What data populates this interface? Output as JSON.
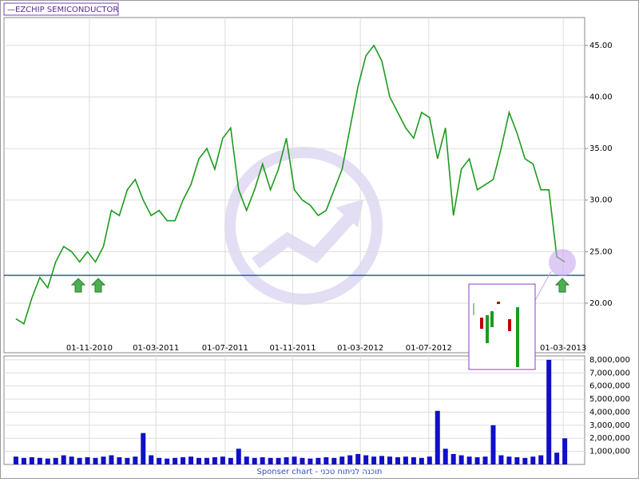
{
  "chart_data": [
    {
      "type": "line",
      "legend_label": "EZCHIP SEMICONDUCTOR",
      "series": [
        {
          "name": "EZCHIP SEMICONDUCTOR",
          "color": "#1e9a1e",
          "values": [
            18.5,
            18,
            20.5,
            22.5,
            21.5,
            24,
            25.5,
            25,
            24,
            25,
            24,
            25.5,
            29,
            28.5,
            31,
            32,
            30,
            28.5,
            29,
            28,
            28,
            30,
            31.5,
            34,
            35,
            33,
            36,
            37,
            31,
            29,
            31,
            33.5,
            31,
            33,
            36,
            31,
            30,
            29.5,
            28.5,
            29,
            31,
            33,
            37,
            41,
            44,
            45,
            43.5,
            40,
            38.5,
            37,
            36,
            38.5,
            38,
            34,
            37,
            28.5,
            33,
            34,
            31,
            31.5,
            32,
            35,
            38.5,
            36.5,
            34,
            33.5,
            31,
            31,
            24.5,
            24
          ]
        }
      ],
      "xlim": [
        -1.5,
        71.5
      ],
      "xticks": [
        {
          "value": 9.24,
          "label": "01-11-2010"
        },
        {
          "value": 17.6,
          "label": "01-03-2011"
        },
        {
          "value": 26.3,
          "label": "01-07-2011"
        },
        {
          "value": 34.8,
          "label": "01-11-2011"
        },
        {
          "value": 43.3,
          "label": "01-03-2012"
        },
        {
          "value": 51.9,
          "label": "01-07-2012"
        },
        {
          "value": 68.8,
          "label": "01-03-2013"
        }
      ],
      "ylim": [
        15.2,
        47.7
      ],
      "yticks": [
        {
          "value": 20,
          "label": "20.00"
        },
        {
          "value": 25,
          "label": "25.00"
        },
        {
          "value": 30,
          "label": "30.00"
        },
        {
          "value": 35,
          "label": "35.00"
        },
        {
          "value": 40,
          "label": "40.00"
        },
        {
          "value": 45,
          "label": "45.00"
        }
      ],
      "reference_line": {
        "value": 22.7,
        "color": "#1f4e9a"
      },
      "grid": true
    },
    {
      "type": "bar",
      "color": "#1010c8",
      "values": [
        600000,
        500000,
        550000,
        500000,
        450000,
        500000,
        700000,
        600000,
        500000,
        550000,
        500000,
        600000,
        700000,
        550000,
        500000,
        600000,
        2400000,
        700000,
        500000,
        450000,
        500000,
        550000,
        600000,
        500000,
        500000,
        550000,
        600000,
        500000,
        1200000,
        600000,
        500000,
        550000,
        500000,
        500000,
        550000,
        600000,
        500000,
        450000,
        500000,
        550000,
        500000,
        600000,
        700000,
        800000,
        700000,
        600000,
        650000,
        600000,
        550000,
        600000,
        550000,
        500000,
        600000,
        4100000,
        1200000,
        800000,
        700000,
        600000,
        550000,
        600000,
        3000000,
        700000,
        600000,
        550000,
        500000,
        600000,
        700000,
        8000000,
        900000,
        2000000
      ],
      "ylim": [
        0,
        8300000
      ],
      "yticks": [
        {
          "value": 1000000,
          "label": "1,000,000"
        },
        {
          "value": 2000000,
          "label": "2,000,000"
        },
        {
          "value": 3000000,
          "label": "3,000,000"
        },
        {
          "value": 4000000,
          "label": "4,000,000"
        },
        {
          "value": 5000000,
          "label": "5,000,000"
        },
        {
          "value": 6000000,
          "label": "6,000,000"
        },
        {
          "value": 7000000,
          "label": "7,000,000"
        },
        {
          "value": 8000000,
          "label": "8,000,000"
        }
      ],
      "grid": true,
      "footer": "Sponser chart - תוכנה לניתוח טכני"
    }
  ]
}
